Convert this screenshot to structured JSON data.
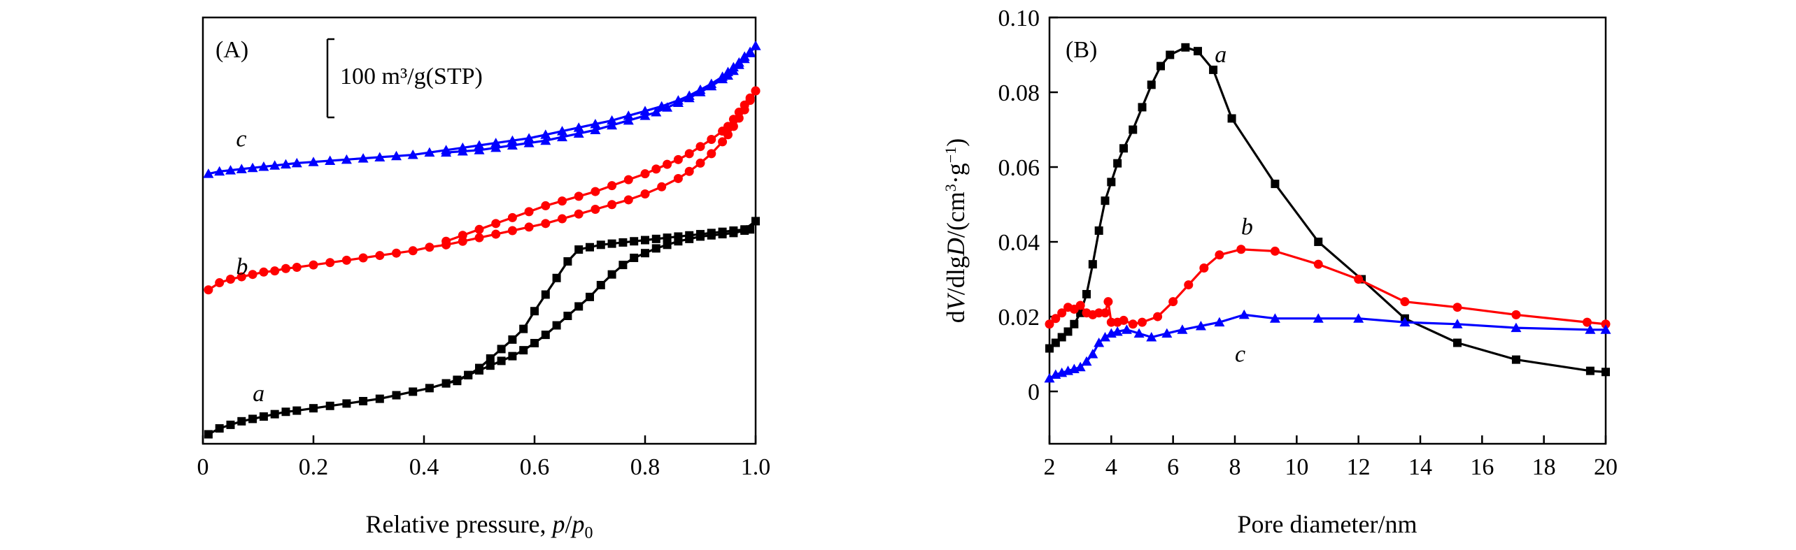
{
  "chart_data": [
    {
      "panel": "(A)",
      "type": "line",
      "xlabel_main": "Relative pressure, ",
      "xlabel_var": "p",
      "xlabel_slash": "/",
      "xlabel_var2": "p",
      "xlabel_sub": "0",
      "ylabel": "",
      "xlim": [
        0,
        1.0
      ],
      "ylim": [
        0,
        360
      ],
      "xticks": [
        "0",
        "0.2",
        "0.4",
        "0.6",
        "0.8",
        "1.0"
      ],
      "xtick_values": [
        0,
        0.2,
        0.4,
        0.6,
        0.8,
        1.0
      ],
      "scale_bar": {
        "label": "100 m³/g(STP)",
        "value": 100
      },
      "series": [
        {
          "name": "a",
          "color": "#000000",
          "marker": "square",
          "label_pos": [
            0.09,
            36
          ],
          "adsorption": {
            "x": [
              0.01,
              0.03,
              0.05,
              0.07,
              0.09,
              0.11,
              0.13,
              0.15,
              0.17,
              0.2,
              0.23,
              0.26,
              0.29,
              0.32,
              0.35,
              0.38,
              0.41,
              0.44,
              0.46,
              0.48,
              0.5,
              0.52,
              0.54,
              0.56,
              0.58,
              0.6,
              0.62,
              0.64,
              0.66,
              0.68,
              0.7,
              0.72,
              0.74,
              0.76,
              0.78,
              0.8,
              0.82,
              0.84,
              0.86,
              0.88,
              0.9,
              0.92,
              0.94,
              0.96,
              0.98,
              0.99,
              1.0
            ],
            "y": [
              8,
              13,
              16,
              19,
              21,
              23,
              25,
              27,
              28,
              30,
              32,
              34,
              36,
              38,
              41,
              44,
              47,
              51,
              54,
              58,
              62,
              66,
              70,
              74,
              79,
              85,
              92,
              100,
              108,
              116,
              124,
              134,
              143,
              151,
              157,
              161,
              165,
              168,
              171,
              173,
              175,
              176,
              177,
              178,
              180,
              181,
              188
            ]
          },
          "desorption": {
            "x": [
              1.0,
              0.98,
              0.96,
              0.94,
              0.92,
              0.9,
              0.88,
              0.86,
              0.84,
              0.82,
              0.8,
              0.78,
              0.76,
              0.74,
              0.72,
              0.7,
              0.68,
              0.66,
              0.64,
              0.62,
              0.6,
              0.58,
              0.56,
              0.54,
              0.52,
              0.5,
              0.48,
              0.46,
              0.44
            ],
            "y": [
              188,
              181,
              180,
              179,
              178,
              177,
              176,
              175,
              174,
              173,
              172,
              171,
              170,
              169,
              168,
              166,
              164,
              154,
              140,
              126,
              112,
              97,
              88,
              80,
              72,
              64,
              58,
              53,
              51
            ]
          }
        },
        {
          "name": "b",
          "color": "#ff0000",
          "marker": "circle",
          "label_pos": [
            0.06,
            143
          ],
          "adsorption": {
            "x": [
              0.01,
              0.03,
              0.05,
              0.07,
              0.09,
              0.11,
              0.13,
              0.15,
              0.17,
              0.2,
              0.23,
              0.26,
              0.29,
              0.32,
              0.35,
              0.38,
              0.41,
              0.44,
              0.47,
              0.5,
              0.53,
              0.56,
              0.59,
              0.62,
              0.65,
              0.68,
              0.71,
              0.74,
              0.77,
              0.8,
              0.83,
              0.86,
              0.88,
              0.9,
              0.92,
              0.94,
              0.95,
              0.96,
              0.97,
              0.98,
              0.99,
              1.0
            ],
            "y": [
              130,
              136,
              139,
              141,
              143,
              145,
              146,
              148,
              149,
              151,
              153,
              155,
              157,
              159,
              161,
              163,
              166,
              168,
              171,
              174,
              177,
              180,
              183,
              186,
              190,
              194,
              198,
              202,
              206,
              211,
              217,
              224,
              230,
              237,
              245,
              255,
              261,
              268,
              275,
              282,
              290,
              298
            ]
          },
          "desorption": {
            "x": [
              1.0,
              0.99,
              0.98,
              0.97,
              0.96,
              0.95,
              0.94,
              0.92,
              0.9,
              0.88,
              0.86,
              0.84,
              0.82,
              0.8,
              0.77,
              0.74,
              0.71,
              0.68,
              0.65,
              0.62,
              0.59,
              0.56,
              0.53,
              0.5,
              0.47,
              0.44
            ],
            "y": [
              298,
              292,
              286,
              280,
              274,
              268,
              264,
              257,
              251,
              245,
              240,
              236,
              232,
              228,
              223,
              218,
              213,
              209,
              205,
              201,
              196,
              191,
              186,
              181,
              176,
              171
            ]
          }
        },
        {
          "name": "c",
          "color": "#0000ff",
          "marker": "triangle",
          "label_pos": [
            0.06,
            251
          ],
          "adsorption": {
            "x": [
              0.01,
              0.03,
              0.05,
              0.07,
              0.09,
              0.11,
              0.13,
              0.15,
              0.17,
              0.2,
              0.23,
              0.26,
              0.29,
              0.32,
              0.35,
              0.38,
              0.41,
              0.44,
              0.47,
              0.5,
              0.53,
              0.56,
              0.59,
              0.62,
              0.65,
              0.68,
              0.71,
              0.74,
              0.77,
              0.8,
              0.83,
              0.86,
              0.88,
              0.9,
              0.92,
              0.94,
              0.95,
              0.96,
              0.97,
              0.98,
              0.99,
              1.0
            ],
            "y": [
              228,
              230,
              231,
              232,
              233,
              234,
              235,
              236,
              237,
              238,
              239,
              240,
              241,
              242,
              243,
              244,
              246,
              248,
              250,
              252,
              254,
              256,
              258,
              261,
              264,
              267,
              270,
              273,
              277,
              281,
              285,
              290,
              294,
              299,
              304,
              310,
              314,
              318,
              322,
              327,
              331,
              336
            ]
          },
          "desorption": {
            "x": [
              1.0,
              0.99,
              0.98,
              0.97,
              0.96,
              0.95,
              0.94,
              0.92,
              0.9,
              0.88,
              0.86,
              0.84,
              0.82,
              0.8,
              0.77,
              0.74,
              0.71,
              0.68,
              0.65,
              0.62,
              0.59,
              0.56,
              0.53,
              0.5,
              0.47,
              0.44
            ],
            "y": [
              336,
              330,
              325,
              320,
              315,
              311,
              308,
              302,
              297,
              292,
              288,
              284,
              280,
              277,
              273,
              269,
              265,
              262,
              259,
              256,
              254,
              252,
              250,
              248,
              247,
              246
            ]
          }
        }
      ]
    },
    {
      "panel": "(B)",
      "type": "line",
      "xlabel": "Pore diameter/nm",
      "ylabel_parts": [
        "d",
        "V",
        "/d",
        "lg",
        "D",
        "/(cm",
        "3",
        "·g",
        "−1",
        ")"
      ],
      "xlim": [
        2,
        20
      ],
      "ylim": [
        -0.014,
        0.1
      ],
      "xticks": [
        "2",
        "4",
        "6",
        "8",
        "10",
        "12",
        "14",
        "16",
        "18",
        "20"
      ],
      "xtick_values": [
        2,
        4,
        6,
        8,
        10,
        12,
        14,
        16,
        18,
        20
      ],
      "yticks": [
        "0",
        "0.02",
        "0.04",
        "0.06",
        "0.08",
        "0.10"
      ],
      "ytick_values": [
        0,
        0.02,
        0.04,
        0.06,
        0.08,
        0.1
      ],
      "series": [
        {
          "name": "a",
          "color": "#000000",
          "marker": "square",
          "label_pos": [
            7.35,
            0.088
          ],
          "x": [
            2.0,
            2.2,
            2.4,
            2.6,
            2.8,
            3.0,
            3.2,
            3.4,
            3.6,
            3.8,
            4.0,
            4.2,
            4.4,
            4.7,
            5.0,
            5.3,
            5.6,
            5.9,
            6.4,
            6.8,
            7.3,
            7.9,
            9.3,
            10.7,
            12.1,
            13.5,
            15.2,
            17.1,
            19.5,
            20.0
          ],
          "y": [
            0.0115,
            0.013,
            0.0145,
            0.016,
            0.018,
            0.021,
            0.026,
            0.034,
            0.043,
            0.051,
            0.056,
            0.061,
            0.065,
            0.07,
            0.076,
            0.082,
            0.087,
            0.09,
            0.092,
            0.091,
            0.086,
            0.073,
            0.0555,
            0.04,
            0.03,
            0.0195,
            0.013,
            0.0085,
            0.0055,
            0.0052
          ]
        },
        {
          "name": "b",
          "color": "#ff0000",
          "marker": "circle",
          "label_pos": [
            8.2,
            0.042
          ],
          "x": [
            2.0,
            2.2,
            2.4,
            2.6,
            2.8,
            3.0,
            3.2,
            3.4,
            3.6,
            3.8,
            3.9,
            4.0,
            4.2,
            4.4,
            4.7,
            5.0,
            5.5,
            6.0,
            6.5,
            7.0,
            7.5,
            8.2,
            9.3,
            10.7,
            12.0,
            13.5,
            15.2,
            17.1,
            19.4,
            20.0
          ],
          "y": [
            0.018,
            0.0195,
            0.021,
            0.0225,
            0.022,
            0.023,
            0.021,
            0.0205,
            0.021,
            0.021,
            0.024,
            0.0185,
            0.0185,
            0.019,
            0.018,
            0.0185,
            0.02,
            0.024,
            0.0285,
            0.033,
            0.0365,
            0.038,
            0.0375,
            0.034,
            0.03,
            0.024,
            0.0225,
            0.0205,
            0.0185,
            0.018
          ]
        },
        {
          "name": "c",
          "color": "#0000ff",
          "marker": "triangle",
          "label_pos": [
            8.0,
            0.008
          ],
          "x": [
            2.0,
            2.2,
            2.4,
            2.6,
            2.8,
            3.0,
            3.2,
            3.4,
            3.6,
            3.8,
            4.0,
            4.2,
            4.5,
            4.9,
            5.3,
            5.8,
            6.3,
            6.9,
            7.5,
            8.3,
            9.3,
            10.7,
            12.0,
            13.5,
            15.2,
            17.1,
            19.5,
            20.0
          ],
          "y": [
            0.0035,
            0.0045,
            0.005,
            0.0055,
            0.006,
            0.0065,
            0.008,
            0.01,
            0.013,
            0.0145,
            0.0155,
            0.016,
            0.0165,
            0.0155,
            0.0145,
            0.0155,
            0.0165,
            0.0175,
            0.0185,
            0.0205,
            0.0195,
            0.0195,
            0.0195,
            0.0185,
            0.018,
            0.017,
            0.0165,
            0.0165
          ]
        }
      ]
    }
  ]
}
